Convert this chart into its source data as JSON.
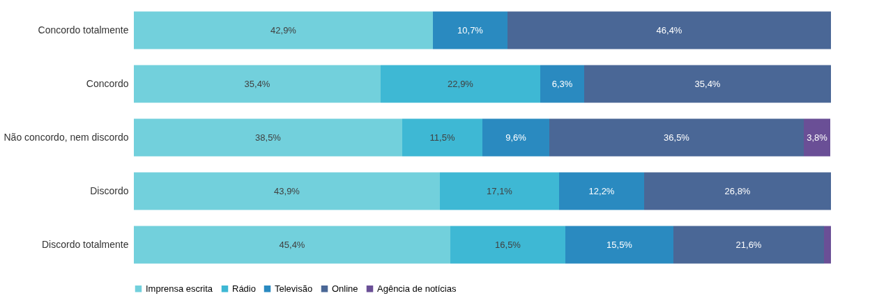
{
  "chart_data": {
    "type": "bar",
    "orientation": "horizontal",
    "stacked": true,
    "legend": "bottom",
    "categories": [
      "Concordo totalmente",
      "Concordo",
      "Não concordo, nem discordo",
      "Discordo",
      "Discordo totalmente"
    ],
    "series": [
      {
        "name": "Imprensa escrita",
        "color": "#72d0dc",
        "values": [
          42.9,
          35.4,
          38.5,
          43.9,
          45.4
        ],
        "value_labels": [
          "42,9%",
          "35,4%",
          "38,5%",
          "43,9%",
          "45,4%"
        ]
      },
      {
        "name": "Rádio",
        "color": "#3eb8d4",
        "values": [
          null,
          22.9,
          11.5,
          17.1,
          16.5
        ],
        "value_labels": [
          null,
          "22,9%",
          "11,5%",
          "17,1%",
          "16,5%"
        ]
      },
      {
        "name": "Televisão",
        "color": "#2a8ac0",
        "values": [
          10.7,
          6.3,
          9.6,
          12.2,
          15.5
        ],
        "value_labels": [
          "10,7%",
          "6,3%",
          "9,6%",
          "12,2%",
          "15,5%"
        ]
      },
      {
        "name": "Online",
        "color": "#4a6796",
        "values": [
          46.4,
          35.4,
          36.5,
          26.8,
          21.6
        ],
        "value_labels": [
          "46,4%",
          "35,4%",
          "36,5%",
          "26,8%",
          "21,6%"
        ]
      },
      {
        "name": "Agência de notícias",
        "color": "#6a4f96",
        "values": [
          null,
          null,
          3.8,
          null,
          1.0
        ],
        "value_labels": [
          null,
          null,
          "3,8%",
          null,
          null
        ]
      }
    ]
  }
}
